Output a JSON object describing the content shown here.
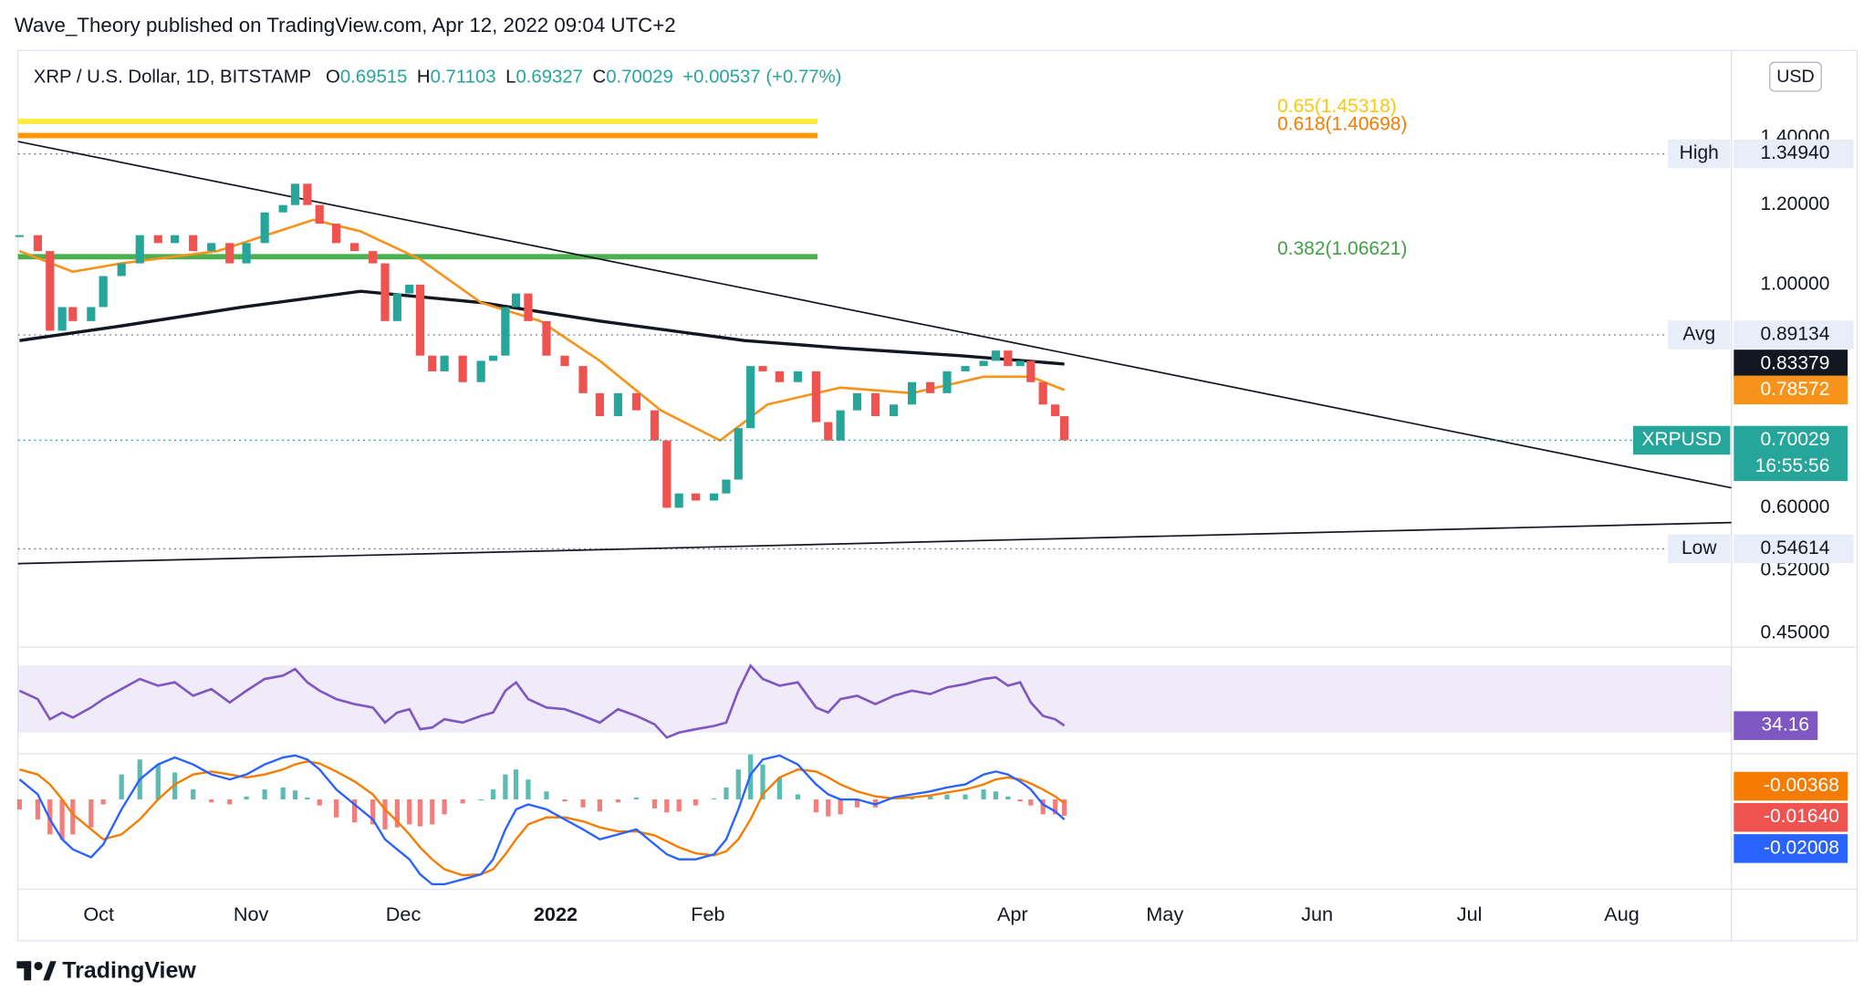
{
  "chart_data": {
    "type": "candlestick",
    "header": "Wave_Theory published on TradingView.com, Apr 12, 2022 09:04 UTC+2",
    "legend": {
      "symbol": "XRP / U.S. Dollar, 1D, BITSTAMP",
      "ohlc": [
        {
          "key": "O",
          "value": "0.69515"
        },
        {
          "key": "H",
          "value": "0.71103"
        },
        {
          "key": "L",
          "value": "0.69327"
        },
        {
          "key": "C",
          "value": "0.70029"
        }
      ],
      "change": "+0.00537 (+0.77%)"
    },
    "currency": "USD",
    "up_color": "#26a69a",
    "down_color": "#ef5350",
    "xlim": [
      -0.53,
      10.72
    ],
    "xticks": [
      {
        "value": 0,
        "label": "Oct"
      },
      {
        "value": 1,
        "label": "Nov"
      },
      {
        "value": 2,
        "label": "Dec"
      },
      {
        "value": 3,
        "label": "2022"
      },
      {
        "value": 4,
        "label": "Feb"
      },
      {
        "value": 6,
        "label": "Apr"
      },
      {
        "value": 7,
        "label": "May"
      },
      {
        "value": 8,
        "label": "Jun"
      },
      {
        "value": 9,
        "label": "Jul"
      },
      {
        "value": 10,
        "label": "Aug"
      }
    ],
    "ylim": [
      0.436,
      1.71
    ],
    "log_scale": true,
    "yticks": [
      {
        "value": 1.4,
        "label": "1.40000"
      },
      {
        "value": 1.2,
        "label": "1.20000"
      },
      {
        "value": 1,
        "label": "1.00000"
      },
      {
        "value": 0.6,
        "label": "0.60000"
      },
      {
        "value": 0.52,
        "label": "0.52000"
      },
      {
        "value": 0.45,
        "label": "0.45000"
      }
    ],
    "x": [
      -0.52,
      -0.4,
      -0.32,
      -0.24,
      -0.17,
      -0.05,
      0.03,
      0.15,
      0.27,
      0.39,
      0.5,
      0.62,
      0.74,
      0.86,
      0.97,
      1.09,
      1.21,
      1.29,
      1.37,
      1.45,
      1.56,
      1.68,
      1.8,
      1.88,
      1.96,
      2.04,
      2.11,
      2.19,
      2.27,
      2.39,
      2.51,
      2.59,
      2.67,
      2.74,
      2.82,
      2.94,
      3.06,
      3.18,
      3.29,
      3.41,
      3.53,
      3.65,
      3.73,
      3.81,
      3.92,
      4.04,
      4.12,
      4.2,
      4.28,
      4.36,
      4.47,
      4.59,
      4.71,
      4.79,
      4.87,
      4.98,
      5.1,
      5.22,
      5.34,
      5.46,
      5.57,
      5.69,
      5.81,
      5.89,
      5.97,
      6.05,
      6.12,
      6.2,
      6.28,
      6.34
    ],
    "values": [
      1.12,
      1.08,
      0.9,
      0.95,
      0.92,
      0.95,
      1.02,
      1.05,
      1.12,
      1.1,
      1.12,
      1.08,
      1.1,
      1.05,
      1.1,
      1.18,
      1.2,
      1.26,
      1.2,
      1.15,
      1.1,
      1.08,
      1.05,
      0.92,
      0.98,
      1.0,
      0.85,
      0.82,
      0.85,
      0.8,
      0.84,
      0.85,
      0.95,
      0.98,
      0.92,
      0.85,
      0.83,
      0.78,
      0.74,
      0.78,
      0.75,
      0.7,
      0.6,
      0.62,
      0.61,
      0.62,
      0.64,
      0.72,
      0.83,
      0.82,
      0.8,
      0.82,
      0.73,
      0.7,
      0.75,
      0.78,
      0.74,
      0.76,
      0.8,
      0.78,
      0.82,
      0.83,
      0.84,
      0.86,
      0.83,
      0.84,
      0.8,
      0.76,
      0.74,
      0.70029
    ],
    "moving_averages": [
      {
        "color": "#131722",
        "x": [
          -0.52,
          0.15,
          0.94,
          1.72,
          2.51,
          3.29,
          4.24,
          4.87,
          5.65,
          6.34
        ],
        "values": [
          0.88,
          0.91,
          0.95,
          0.985,
          0.96,
          0.92,
          0.88,
          0.865,
          0.85,
          0.83379
        ]
      },
      {
        "color": "#f7931a",
        "x": [
          -0.52,
          -0.17,
          0.15,
          0.78,
          1.41,
          1.72,
          2.11,
          2.51,
          2.9,
          3.29,
          3.69,
          4.08,
          4.39,
          4.87,
          5.34,
          5.81,
          6.12,
          6.34
        ],
        "values": [
          1.08,
          1.03,
          1.05,
          1.08,
          1.16,
          1.13,
          1.06,
          0.96,
          0.92,
          0.84,
          0.75,
          0.7,
          0.76,
          0.79,
          0.78,
          0.81,
          0.81,
          0.78572
        ]
      }
    ],
    "fib_levels": [
      {
        "label": "0.65(1.45318)",
        "value": 1.45318,
        "color": "#ffeb3b",
        "text_color": "#f9c80e"
      },
      {
        "label": "0.618(1.40698)",
        "value": 1.40698,
        "color": "#ff9800",
        "text_color": "#f57c00"
      },
      {
        "label": "0.382(1.06621)",
        "value": 1.06621,
        "color": "#4caf50",
        "text_color": "#43a047"
      }
    ],
    "fib_x_end": 4.72,
    "trendlines": [
      {
        "color": "#131722",
        "x": [
          -0.53,
          10.72
        ],
        "values": [
          1.388,
          0.628
        ]
      },
      {
        "color": "#131722",
        "x": [
          -0.53,
          10.72
        ],
        "values": [
          0.528,
          0.58
        ]
      }
    ],
    "price_lines": [
      {
        "name": "High",
        "value": 1.3494,
        "label": "1.34940"
      },
      {
        "name": "Avg",
        "value": 0.89134,
        "label": "0.89134"
      },
      {
        "name": "Low",
        "value": 0.54614,
        "label": "0.54614"
      }
    ],
    "last_price": {
      "name": "XRPUSD",
      "countdown": "16:55:56",
      "color": "#26a69a"
    },
    "rsi": {
      "ylim": [
        18,
        81
      ],
      "band": [
        30,
        70
      ],
      "color": "#7e57c2",
      "values": [
        55,
        50,
        38,
        42,
        39,
        45,
        50,
        56,
        62,
        58,
        60,
        52,
        56,
        48,
        55,
        62,
        64,
        68,
        60,
        55,
        50,
        47,
        45,
        36,
        42,
        44,
        32,
        33,
        38,
        36,
        40,
        42,
        55,
        60,
        50,
        45,
        44,
        40,
        36,
        44,
        40,
        35,
        27,
        30,
        32,
        34,
        36,
        55,
        70,
        62,
        58,
        60,
        45,
        42,
        50,
        52,
        47,
        52,
        55,
        53,
        57,
        59,
        62,
        63,
        58,
        60,
        48,
        40,
        38,
        34.16
      ]
    },
    "macd": {
      "ylim": [
        -0.09,
        0.0444
      ],
      "signal": {
        "color": "#f57c00",
        "values": [
          0.03,
          0.025,
          0.015,
          0.0,
          -0.015,
          -0.03,
          -0.04,
          -0.035,
          -0.02,
          0.0,
          0.015,
          0.025,
          0.028,
          0.025,
          0.022,
          0.025,
          0.03,
          0.035,
          0.038,
          0.036,
          0.028,
          0.018,
          0.005,
          -0.01,
          -0.022,
          -0.035,
          -0.048,
          -0.06,
          -0.07,
          -0.076,
          -0.075,
          -0.07,
          -0.055,
          -0.04,
          -0.025,
          -0.018,
          -0.018,
          -0.022,
          -0.028,
          -0.032,
          -0.032,
          -0.036,
          -0.042,
          -0.048,
          -0.054,
          -0.056,
          -0.052,
          -0.04,
          -0.02,
          0.005,
          0.022,
          0.03,
          0.028,
          0.022,
          0.015,
          0.008,
          0.003,
          0.001,
          0.002,
          0.004,
          0.007,
          0.01,
          0.015,
          0.02,
          0.022,
          0.02,
          0.016,
          0.01,
          0.003,
          -0.00368
        ]
      },
      "histogram": {
        "color": "#ef5350",
        "up_color": "#26a69a",
        "last_label": "-0.01640",
        "values": [
          -0.01,
          -0.02,
          -0.035,
          -0.04,
          -0.035,
          -0.028,
          -0.005,
          0.025,
          0.04,
          0.035,
          0.027,
          0.01,
          -0.003,
          -0.005,
          0.003,
          0.01,
          0.012,
          0.009,
          0.002,
          -0.006,
          -0.018,
          -0.023,
          -0.025,
          -0.03,
          -0.028,
          -0.025,
          -0.027,
          -0.025,
          -0.015,
          -0.004,
          0.0,
          0.01,
          0.025,
          0.03,
          0.02,
          0.008,
          -0.002,
          -0.008,
          -0.012,
          -0.003,
          0.002,
          -0.009,
          -0.013,
          -0.012,
          -0.006,
          0.001,
          0.012,
          0.03,
          0.045,
          0.035,
          0.022,
          0.005,
          -0.013,
          -0.017,
          -0.015,
          -0.008,
          -0.008,
          0.001,
          0.003,
          0.004,
          0.005,
          0.005,
          0.01,
          0.008,
          0.003,
          -0.002,
          -0.006,
          -0.015,
          -0.015,
          -0.0164
        ]
      },
      "macd": {
        "color": "#2962ff",
        "values": [
          0.02,
          0.005,
          -0.02,
          -0.04,
          -0.05,
          -0.058,
          -0.045,
          -0.01,
          0.02,
          0.035,
          0.042,
          0.035,
          0.025,
          0.02,
          0.025,
          0.035,
          0.042,
          0.044,
          0.04,
          0.03,
          0.01,
          -0.005,
          -0.02,
          -0.04,
          -0.05,
          -0.06,
          -0.075,
          -0.085,
          -0.085,
          -0.08,
          -0.075,
          -0.06,
          -0.03,
          -0.01,
          -0.005,
          -0.01,
          -0.02,
          -0.03,
          -0.04,
          -0.035,
          -0.03,
          -0.045,
          -0.055,
          -0.06,
          -0.06,
          -0.055,
          -0.04,
          -0.01,
          0.025,
          0.04,
          0.044,
          0.035,
          0.015,
          0.005,
          0.0,
          0.0,
          -0.005,
          0.002,
          0.005,
          0.008,
          0.012,
          0.015,
          0.025,
          0.028,
          0.025,
          0.018,
          0.01,
          -0.005,
          -0.012,
          -0.02008
        ]
      }
    },
    "footer": "TradingView"
  }
}
